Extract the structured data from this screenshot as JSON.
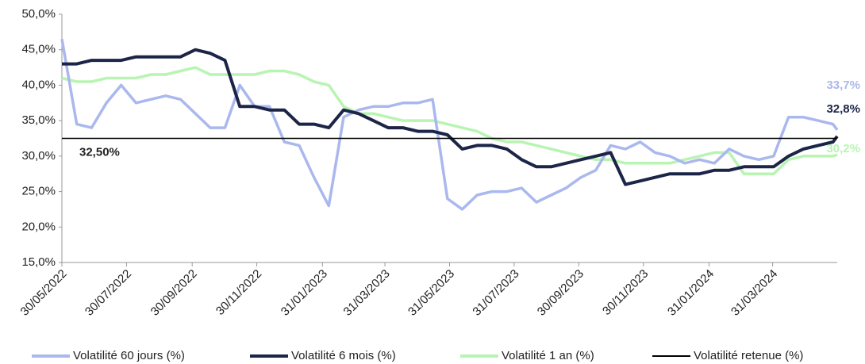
{
  "chart_data": {
    "type": "line",
    "x": [
      "2022-05-30",
      "2022-06-13",
      "2022-06-27",
      "2022-07-11",
      "2022-07-25",
      "2022-08-08",
      "2022-08-22",
      "2022-09-05",
      "2022-09-19",
      "2022-10-03",
      "2022-10-17",
      "2022-10-31",
      "2022-11-14",
      "2022-11-28",
      "2022-12-12",
      "2022-12-26",
      "2023-01-09",
      "2023-01-23",
      "2023-02-06",
      "2023-02-20",
      "2023-03-06",
      "2023-03-20",
      "2023-04-03",
      "2023-04-17",
      "2023-05-01",
      "2023-05-15",
      "2023-05-29",
      "2023-06-12",
      "2023-06-26",
      "2023-07-10",
      "2023-07-24",
      "2023-08-07",
      "2023-08-21",
      "2023-09-04",
      "2023-09-18",
      "2023-10-02",
      "2023-10-16",
      "2023-10-30",
      "2023-11-13",
      "2023-11-27",
      "2023-12-11",
      "2023-12-25",
      "2024-01-08",
      "2024-01-22",
      "2024-02-05",
      "2024-02-19",
      "2024-03-04",
      "2024-03-18",
      "2024-04-01",
      "2024-04-15",
      "2024-04-29",
      "2024-05-13",
      "2024-05-27",
      "2024-05-31"
    ],
    "series": [
      {
        "name": "Volatilité 60 jours (%)",
        "color": "#aab8ee",
        "end_label": "33,7%",
        "values": [
          46.5,
          34.5,
          34.0,
          37.5,
          40.0,
          37.5,
          38.0,
          38.5,
          38.0,
          36.0,
          34.0,
          34.0,
          40.0,
          37.0,
          37.0,
          32.0,
          31.5,
          27.0,
          23.0,
          35.5,
          36.5,
          37.0,
          37.0,
          37.5,
          37.5,
          38.0,
          24.0,
          22.5,
          24.5,
          25.0,
          25.0,
          25.5,
          23.5,
          24.5,
          25.5,
          27.0,
          28.0,
          31.5,
          31.0,
          32.0,
          30.5,
          30.0,
          29.0,
          29.5,
          29.0,
          31.0,
          30.0,
          29.5,
          30.0,
          35.5,
          35.5,
          35.0,
          34.5,
          33.7
        ]
      },
      {
        "name": "Volatilité 6 mois (%)",
        "color": "#1c2547",
        "end_label": "32,8%",
        "values": [
          43.0,
          43.0,
          43.5,
          43.5,
          43.5,
          44.0,
          44.0,
          44.0,
          44.0,
          45.0,
          44.5,
          43.5,
          37.0,
          37.0,
          36.5,
          36.5,
          34.5,
          34.5,
          34.0,
          36.5,
          36.0,
          35.0,
          34.0,
          34.0,
          33.5,
          33.5,
          33.0,
          31.0,
          31.5,
          31.5,
          31.0,
          29.5,
          28.5,
          28.5,
          29.0,
          29.5,
          30.0,
          30.5,
          26.0,
          26.5,
          27.0,
          27.5,
          27.5,
          27.5,
          28.0,
          28.0,
          28.5,
          28.5,
          28.5,
          30.0,
          31.0,
          31.5,
          32.0,
          32.8
        ]
      },
      {
        "name": "Volatilité 1 an (%)",
        "color": "#b8f4b2",
        "end_label": "30,2%",
        "values": [
          41.0,
          40.5,
          40.5,
          41.0,
          41.0,
          41.0,
          41.5,
          41.5,
          42.0,
          42.5,
          41.5,
          41.5,
          41.5,
          41.5,
          42.0,
          42.0,
          41.5,
          40.5,
          40.0,
          37.0,
          36.0,
          36.0,
          35.5,
          35.0,
          35.0,
          35.0,
          34.5,
          34.0,
          33.5,
          32.5,
          32.0,
          32.0,
          31.5,
          31.0,
          30.5,
          30.0,
          29.5,
          29.5,
          29.0,
          29.0,
          29.0,
          29.0,
          29.5,
          30.0,
          30.5,
          30.5,
          27.5,
          27.5,
          27.5,
          29.5,
          30.0,
          30.0,
          30.0,
          30.2
        ]
      }
    ],
    "hline": {
      "name": "Volatilité retenue (%)",
      "color": "#000000",
      "value": 32.5,
      "label": "32,50%"
    },
    "xlim": [
      "2022-05-30",
      "2024-05-31"
    ],
    "xticks": [
      {
        "value": "2022-05-30",
        "label": "30/05/2022"
      },
      {
        "value": "2022-07-30",
        "label": "30/07/2022"
      },
      {
        "value": "2022-09-30",
        "label": "30/09/2022"
      },
      {
        "value": "2022-11-30",
        "label": "30/11/2022"
      },
      {
        "value": "2023-01-31",
        "label": "31/01/2023"
      },
      {
        "value": "2023-03-31",
        "label": "31/03/2023"
      },
      {
        "value": "2023-05-31",
        "label": "31/05/2023"
      },
      {
        "value": "2023-07-31",
        "label": "31/07/2023"
      },
      {
        "value": "2023-09-30",
        "label": "30/09/2023"
      },
      {
        "value": "2023-11-30",
        "label": "30/11/2023"
      },
      {
        "value": "2024-01-31",
        "label": "31/01/2024"
      },
      {
        "value": "2024-03-31",
        "label": "31/03/2024"
      }
    ],
    "ylim": [
      15,
      50
    ],
    "yticks": [
      {
        "value": 15,
        "label": "15,0%"
      },
      {
        "value": 20,
        "label": "20,0%"
      },
      {
        "value": 25,
        "label": "25,0%"
      },
      {
        "value": 30,
        "label": "30,0%"
      },
      {
        "value": 35,
        "label": "35,0%"
      },
      {
        "value": 40,
        "label": "40,0%"
      },
      {
        "value": 45,
        "label": "45,0%"
      },
      {
        "value": 50,
        "label": "50,0%"
      }
    ],
    "grid": false,
    "legend": "bottom"
  }
}
